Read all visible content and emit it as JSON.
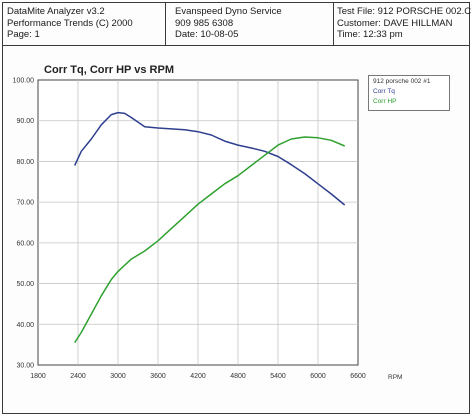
{
  "header": {
    "app_name": "DataMite Analyzer v3.2",
    "copyright": "Performance Trends (C) 2000",
    "page": "Page:  1",
    "shop_name": "Evanspeed Dyno Service",
    "phone": "909 985 6308",
    "date": "Date:  10-08-05",
    "test_file": "Test File: 912 PORSCHE 002.C",
    "customer": "Customer: DAVE HILLMAN",
    "time": "Time:  12:33 pm"
  },
  "chart_data": {
    "type": "line",
    "title": "Corr Tq, Corr HP vs RPM",
    "xlabel": "RPM",
    "ylabel": "",
    "xlim": [
      1800,
      6600
    ],
    "ylim": [
      30.0,
      100.0
    ],
    "x_ticks": [
      "1800",
      "2400",
      "3000",
      "3600",
      "4200",
      "4800",
      "5400",
      "6000",
      "6600"
    ],
    "y_ticks": [
      "30.00",
      "40.00",
      "50.00",
      "60.00",
      "70.00",
      "80.00",
      "90.00",
      "100.00"
    ],
    "grid": true,
    "legend_title": "912 porsche 002  #1",
    "legend_position": "top-right",
    "series": [
      {
        "name": "Corr Tq",
        "color": "#2e3f8f",
        "x": [
          2350,
          2450,
          2600,
          2750,
          2900,
          3000,
          3100,
          3200,
          3400,
          3600,
          3800,
          4000,
          4200,
          4400,
          4600,
          4800,
          5000,
          5200,
          5400,
          5600,
          5800,
          6000,
          6200,
          6400
        ],
        "y": [
          79.0,
          82.5,
          85.5,
          89.0,
          91.5,
          92.0,
          91.8,
          90.8,
          88.5,
          88.2,
          88.0,
          87.8,
          87.3,
          86.5,
          85.0,
          84.0,
          83.3,
          82.5,
          81.2,
          79.2,
          77.0,
          74.5,
          72.0,
          69.3
        ]
      },
      {
        "name": "Corr HP",
        "color": "#2fa12f",
        "x": [
          2350,
          2450,
          2600,
          2750,
          2900,
          3000,
          3200,
          3400,
          3600,
          3800,
          4000,
          4200,
          4400,
          4600,
          4800,
          5000,
          5200,
          5400,
          5600,
          5800,
          6000,
          6200,
          6400
        ],
        "y": [
          35.5,
          38.0,
          42.5,
          47.0,
          51.0,
          53.0,
          56.0,
          58.0,
          60.5,
          63.5,
          66.5,
          69.5,
          72.0,
          74.5,
          76.5,
          79.0,
          81.5,
          84.0,
          85.5,
          86.0,
          85.8,
          85.2,
          83.8
        ]
      }
    ]
  }
}
